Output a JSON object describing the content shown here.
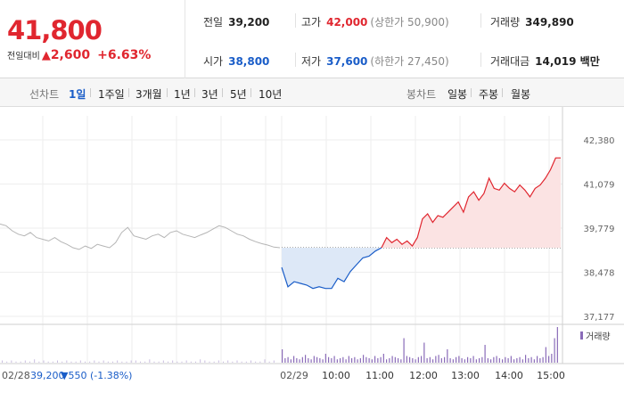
{
  "quote": {
    "price": "41,800",
    "change_label": "전일대비",
    "change_arrow": "▲",
    "change_value": "2,600",
    "change_pct": "+6.63%",
    "prev_close_label": "전일",
    "prev_close": "39,200",
    "high_label": "고가",
    "high": "42,000",
    "upper_limit": "(상한가 50,900)",
    "volume_label": "거래량",
    "volume": "349,890",
    "open_label": "시가",
    "open": "38,800",
    "low_label": "저가",
    "low": "37,600",
    "lower_limit": "(하한가 27,450)",
    "amount_label": "거래대금",
    "amount": "14,019 백만"
  },
  "toolbar": {
    "line_label": "선차트",
    "periods": [
      "1일",
      "1주일",
      "3개월",
      "1년",
      "3년",
      "5년",
      "10년"
    ],
    "active_period": "1일",
    "candle_label": "봉차트",
    "candles": [
      "일봉",
      "주봉",
      "월봉"
    ]
  },
  "colors": {
    "up": "#e0262f",
    "down": "#1a5dc8",
    "prev": "#b5b5b5",
    "volume": "#8a6bb8"
  },
  "chart_data": {
    "type": "line",
    "y_ticks": [
      "42,380",
      "41,079",
      "39,779",
      "38,478",
      "37,177"
    ],
    "ylim": [
      37177,
      42380
    ],
    "baseline": 39200,
    "x_ticks": [
      "02/29",
      "10:00",
      "11:00",
      "12:00",
      "13:00",
      "14:00",
      "15:00"
    ],
    "prev_day_label": "02/28",
    "prev_day_close": "39,200",
    "prev_day_change": "▼550 (-1.38%)",
    "volume_legend": "거래량",
    "series": [
      {
        "values": [
          39900,
          39850,
          39700,
          39600,
          39550,
          39650,
          39500,
          39450,
          39400,
          39500,
          39380,
          39300,
          39200,
          39150,
          39250,
          39180,
          39300,
          39250,
          39200,
          39350,
          39650,
          39800,
          39550,
          39500,
          39450,
          39550,
          39600,
          39500,
          39650,
          39700,
          39600,
          39550,
          39500,
          39580,
          39650,
          39750,
          39850,
          39800,
          39700,
          39600,
          39550,
          39450,
          39380,
          39320,
          39280,
          39220,
          39200
        ]
      },
      {
        "values": [
          38620,
          38050,
          38200,
          38150,
          38100,
          38000,
          38050,
          38000,
          38000,
          38300,
          38200,
          38500,
          38700,
          38900,
          38950,
          39100,
          39200
        ]
      },
      {
        "values": [
          39200,
          39500,
          39350,
          39450,
          39300,
          39400,
          39250,
          39500,
          40050,
          40200,
          39950,
          40150,
          40100,
          40250,
          40400,
          40550,
          40250,
          40700,
          40850,
          40600,
          40800,
          41250,
          40950,
          40900,
          41100,
          40950,
          40850,
          41050,
          40900,
          40700,
          40950,
          41050,
          41250,
          41500,
          41850,
          41850
        ]
      }
    ],
    "volume_series": {
      "prev_day": [
        2,
        1,
        2,
        1,
        1,
        2,
        1,
        3,
        1,
        2,
        1,
        1,
        2,
        1,
        2,
        1,
        1,
        2,
        1,
        1,
        2,
        1,
        2,
        1,
        1,
        2,
        1,
        1,
        2,
        2,
        1,
        1,
        3,
        1,
        1,
        2,
        1,
        2,
        1,
        1,
        2,
        1,
        1,
        3,
        2,
        1,
        1,
        2,
        1,
        2,
        1,
        2,
        1,
        1,
        2,
        1,
        1,
        3,
        1,
        2
      ],
      "today": [
        12,
        4,
        5,
        3,
        6,
        4,
        3,
        5,
        7,
        4,
        3,
        6,
        5,
        4,
        3,
        8,
        5,
        4,
        6,
        3,
        4,
        5,
        3,
        6,
        4,
        5,
        3,
        4,
        7,
        5,
        4,
        3,
        6,
        4,
        5,
        8,
        3,
        4,
        6,
        5,
        4,
        3,
        22,
        6,
        5,
        4,
        3,
        5,
        6,
        18,
        4,
        5,
        3,
        6,
        7,
        4,
        5,
        12,
        4,
        3,
        5,
        6,
        4,
        3,
        5,
        4,
        6,
        3,
        4,
        5,
        16,
        4,
        3,
        5,
        6,
        4,
        3,
        5,
        4,
        6,
        3,
        4,
        5,
        3,
        7,
        4,
        5,
        3,
        6,
        4,
        5,
        14,
        6,
        8,
        22,
        32
      ]
    }
  }
}
